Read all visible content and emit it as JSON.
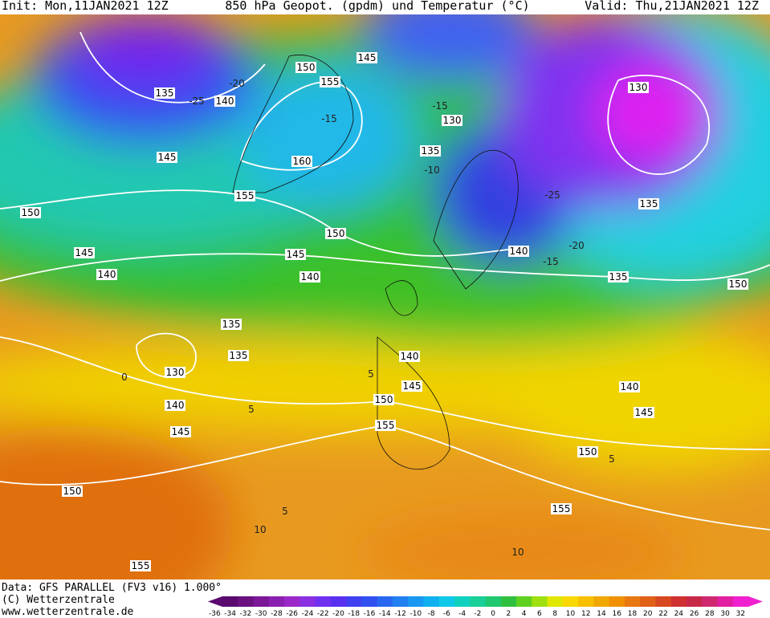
{
  "header": {
    "init": "Init: Mon,11JAN2021 12Z",
    "title": "850 hPa Geopot. (gpdm) und Temperatur (°C)",
    "valid": "Valid: Thu,21JAN2021 12Z"
  },
  "footer": {
    "data": "Data: GFS PARALLEL (FV3 v16) 1.000°",
    "copyright": "(C) Wetterzentrale",
    "url": "www.wetterzentrale.de"
  },
  "geopotential_labels": [
    135,
    140,
    145,
    150,
    145,
    140,
    150,
    145,
    155,
    160,
    155,
    150,
    145,
    140,
    135,
    135,
    130,
    140,
    145,
    150,
    155,
    150,
    155,
    140,
    145,
    130,
    135,
    130,
    135,
    140,
    135,
    150,
    140,
    145,
    150,
    155
  ],
  "temperature_labels": [
    -25,
    -20,
    -15,
    -15,
    -10,
    -25,
    -20,
    -15,
    0,
    5,
    5,
    5,
    5,
    10,
    10
  ],
  "colorbar": {
    "ticks": [
      -36,
      -34,
      -32,
      -30,
      -28,
      -26,
      -24,
      -22,
      -20,
      -18,
      -16,
      -14,
      -12,
      -10,
      -8,
      -6,
      -4,
      -2,
      0,
      2,
      4,
      6,
      8,
      10,
      12,
      14,
      16,
      18,
      20,
      22,
      24,
      26,
      28,
      30,
      32
    ],
    "colors": [
      "#5a0a6e",
      "#6a1080",
      "#7a1898",
      "#8a20b0",
      "#9a28c8",
      "#8a30e0",
      "#7030f0",
      "#5a30f0",
      "#4040f0",
      "#3050f0",
      "#2868f0",
      "#2080f0",
      "#1898f0",
      "#10b0f0",
      "#10c8e8",
      "#10d0c0",
      "#18d098",
      "#20c870",
      "#30c040",
      "#60d020",
      "#a0e010",
      "#e0e800",
      "#f8d800",
      "#f8c000",
      "#f0a800",
      "#f09000",
      "#e87810",
      "#e06018",
      "#d84820",
      "#d03030",
      "#c82848",
      "#d02870",
      "#e020a0",
      "#f020d0"
    ]
  }
}
